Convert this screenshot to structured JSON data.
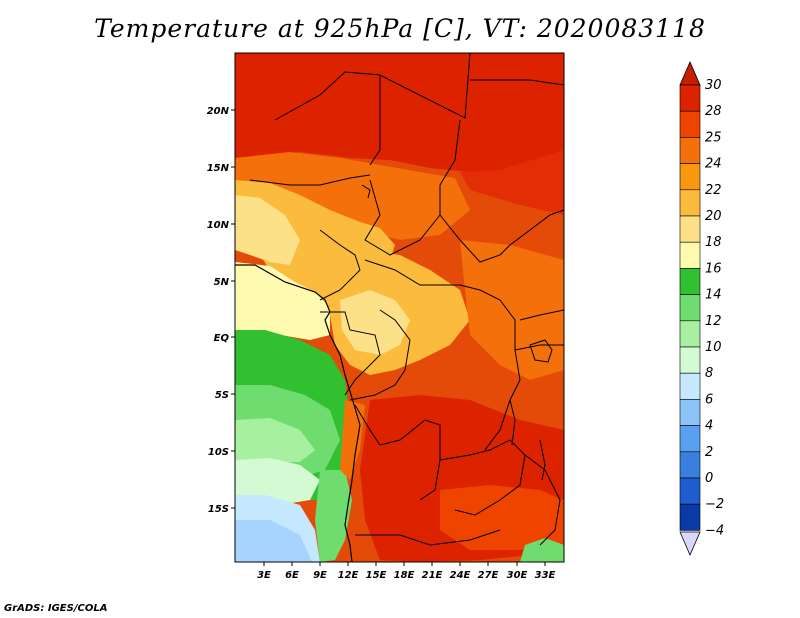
{
  "title": "Temperature at 925hPa [C], VT: 2020083118",
  "credit": "GrADS: IGES/COLA",
  "map": {
    "lat_labels": [
      "20N",
      "15N",
      "10N",
      "5N",
      "EQ",
      "5S",
      "10S",
      "15S"
    ],
    "lon_labels": [
      "3E",
      "6E",
      "9E",
      "12E",
      "15E",
      "18E",
      "21E",
      "24E",
      "27E",
      "30E",
      "33E"
    ]
  },
  "colorbar": {
    "labels": [
      "30",
      "28",
      "25",
      "24",
      "22",
      "20",
      "18",
      "16",
      "14",
      "12",
      "10",
      "8",
      "6",
      "4",
      "2",
      "0",
      "−2",
      "−4"
    ],
    "colors": [
      "#dd2200",
      "#ee4400",
      "#f4700a",
      "#f8980f",
      "#fbbb3c",
      "#fde189",
      "#fefbb0",
      "#30c030",
      "#6fdc6f",
      "#a6f0a0",
      "#d4fad4",
      "#c5e8ff",
      "#8cc4f8",
      "#5aa0f0",
      "#3a7fe0",
      "#1e5cd0",
      "#0a3aa8",
      "#081a70"
    ],
    "top_arrow_color": "#c81d00",
    "bottom_arrow_color": "#d8d8ff"
  }
}
